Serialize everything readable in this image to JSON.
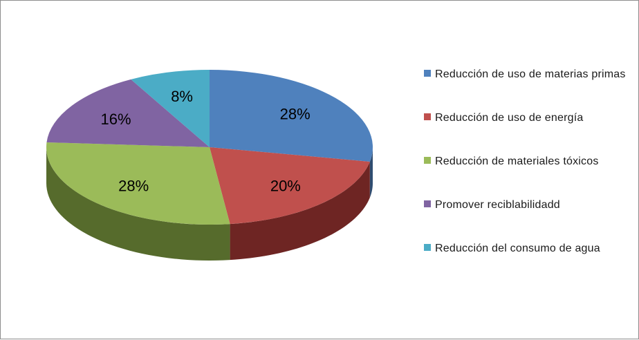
{
  "chart_data": {
    "type": "pie",
    "style": "3d",
    "legend_position": "right",
    "slices": [
      {
        "label": "Reducción de uso de materias primas",
        "value": 28,
        "value_label": "28%",
        "color": "#4F81BD",
        "side_color": "#2f4d71"
      },
      {
        "label": "Reducción de uso de energía",
        "value": 20,
        "value_label": "20%",
        "color": "#C0504D",
        "side_color": "#6e2523"
      },
      {
        "label": "Reducción de materiales tóxicos",
        "value": 28,
        "value_label": "28%",
        "color": "#9BBB59",
        "side_color": "#566b2c"
      },
      {
        "label": "Promover reciblabilidadd",
        "value": 16,
        "value_label": "16%",
        "color": "#8064A2",
        "side_color": "#4a375f"
      },
      {
        "label": "Reducción del consumo de agua",
        "value": 8,
        "value_label": "8%",
        "color": "#4BACC6",
        "side_color": "#2a6878"
      }
    ]
  }
}
